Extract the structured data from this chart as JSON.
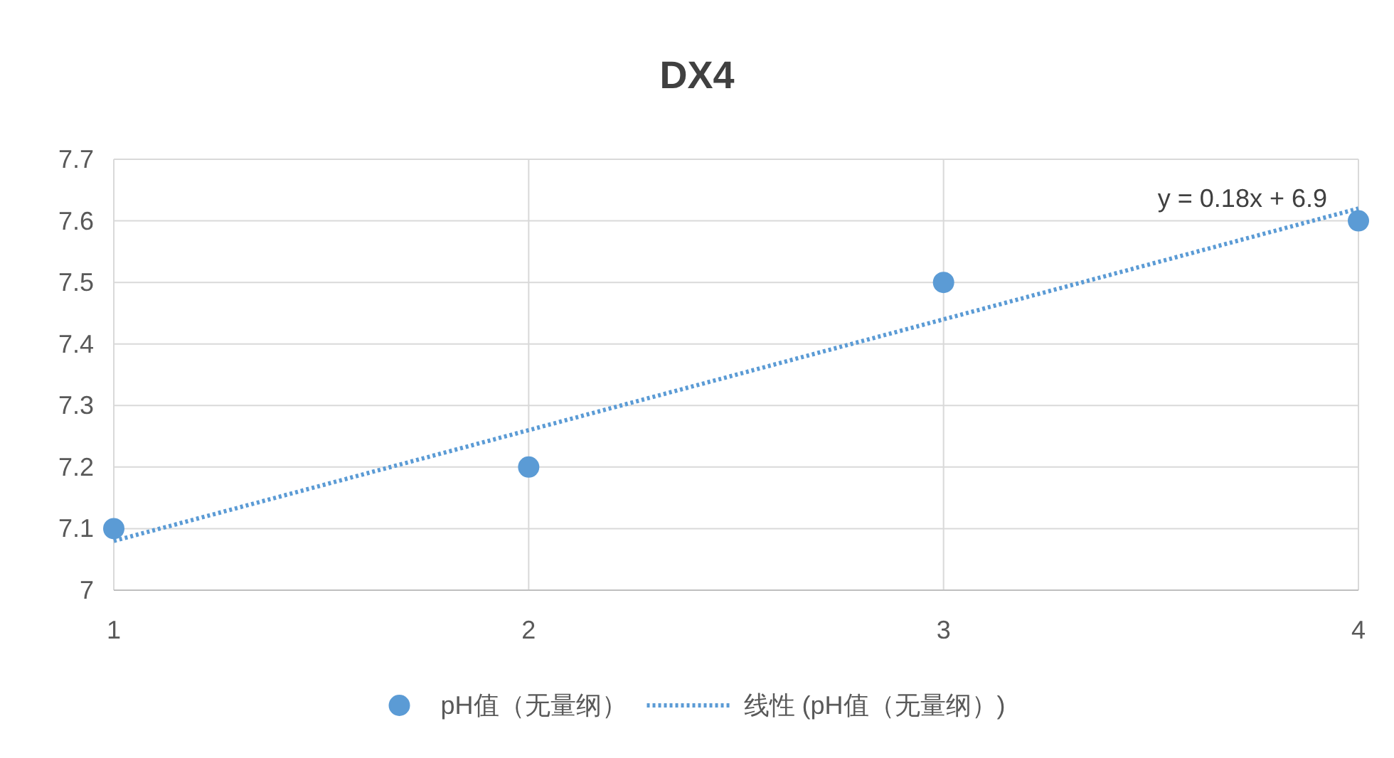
{
  "chart_data": {
    "type": "scatter",
    "title": "DX4",
    "xlim": [
      1,
      4
    ],
    "xticks": [
      1,
      2,
      3,
      4
    ],
    "ylim": [
      7,
      7.7
    ],
    "yticks": [
      7,
      7.1,
      7.2,
      7.3,
      7.4,
      7.5,
      7.6,
      7.7
    ],
    "grid": true,
    "legend": "bottom",
    "series": [
      {
        "name": "pH值（无量纲）",
        "marker": "circle",
        "color": "#5b9bd5",
        "x": [
          1,
          2,
          3,
          4
        ],
        "values": [
          7.1,
          7.2,
          7.5,
          7.6
        ]
      },
      {
        "name": "线性 (pH值（无量纲）)",
        "type": "line",
        "line_style": "dotted",
        "marker": "none",
        "color": "#5b9bd5",
        "x": [
          1,
          4
        ],
        "values": [
          7.08,
          7.62
        ]
      }
    ],
    "annotations": [
      {
        "text": "y = 0.18x + 6.9",
        "x": 4,
        "y": 7.62
      }
    ]
  }
}
